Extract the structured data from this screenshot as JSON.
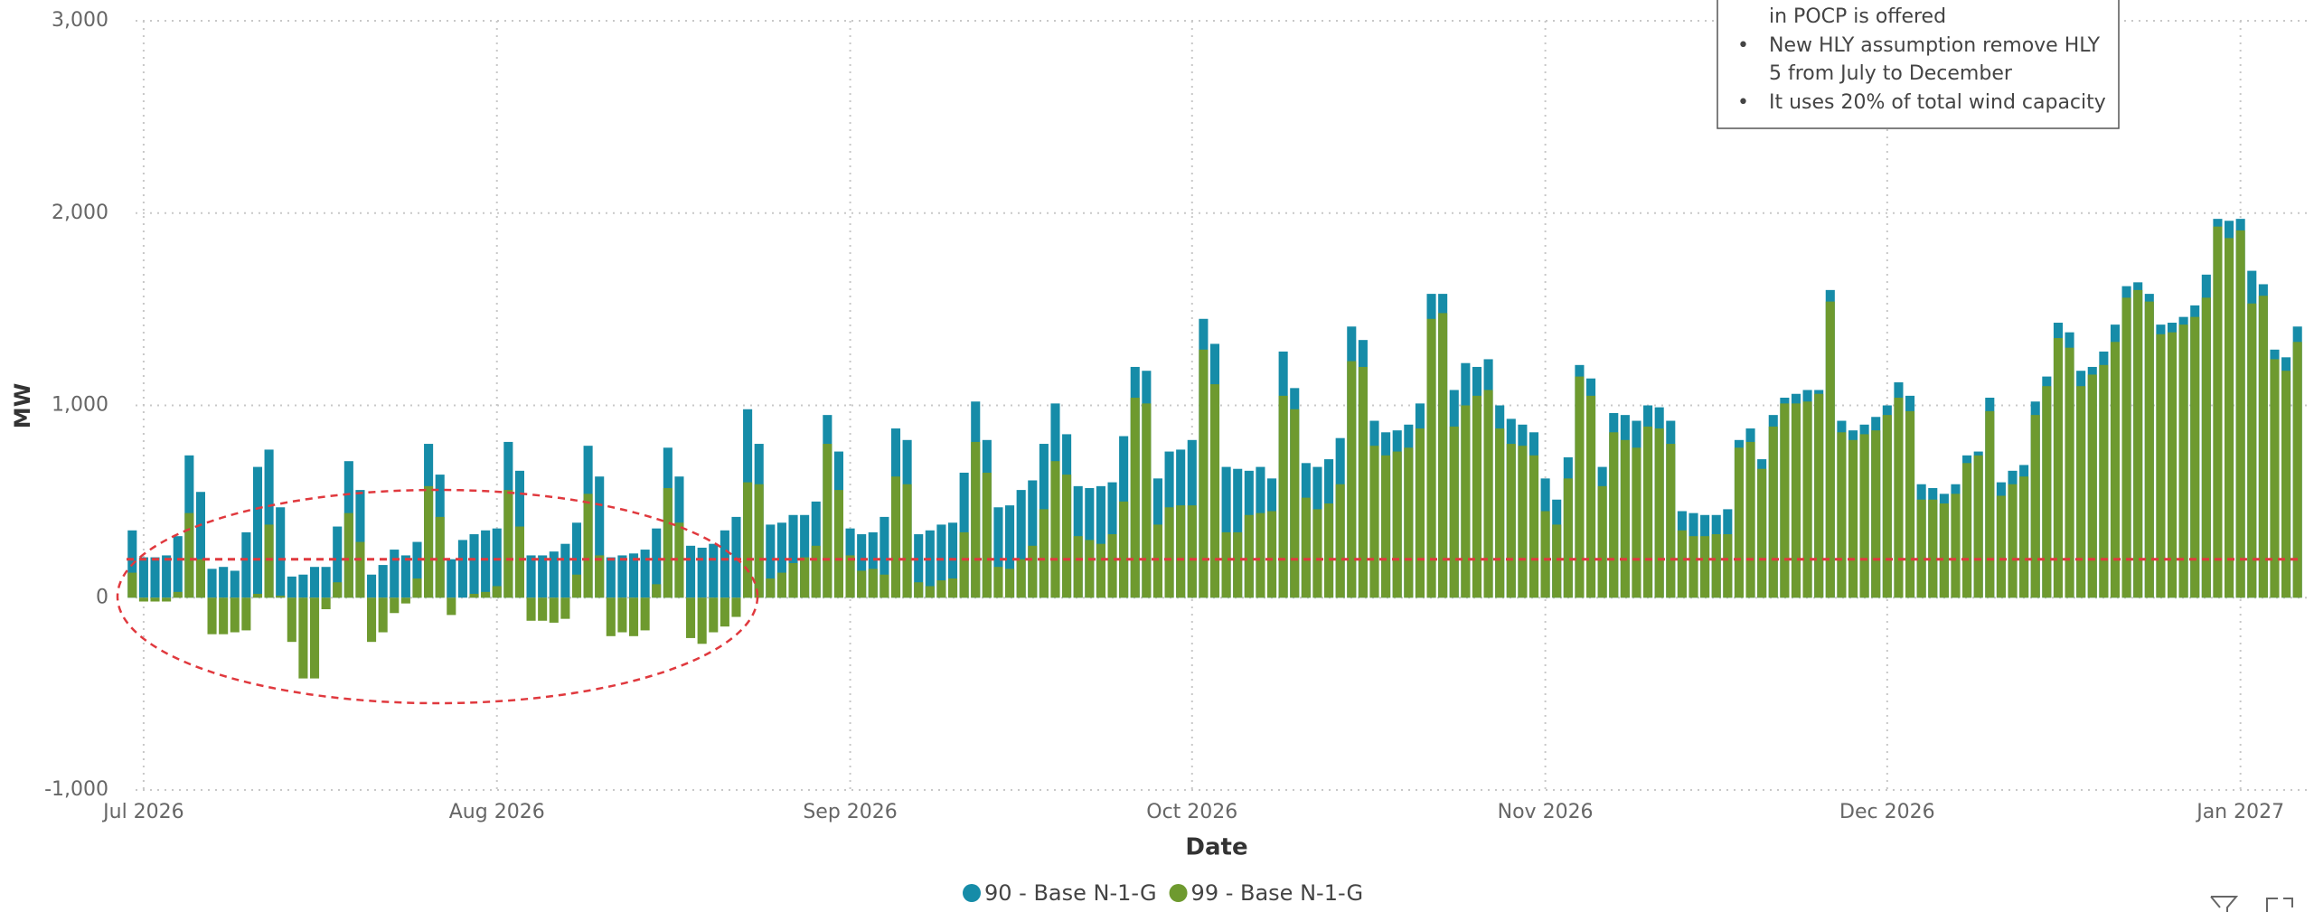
{
  "chart_data": {
    "type": "bar",
    "x_label": "Date",
    "y_label": "MW",
    "xticks": [
      {
        "value": 1,
        "label": "Jul 2026"
      },
      {
        "value": 32,
        "label": "Aug 2026"
      },
      {
        "value": 63,
        "label": "Sep 2026"
      },
      {
        "value": 93,
        "label": "Oct 2026"
      },
      {
        "value": 124,
        "label": "Nov 2026"
      },
      {
        "value": 154,
        "label": "Dec 2026"
      },
      {
        "value": 185,
        "label": "Jan 2027"
      }
    ],
    "xlim": [
      -0.5,
      190.5
    ],
    "ylim": [
      -1000,
      3000
    ],
    "yticks": [
      {
        "value": -1000,
        "label": "-1,000"
      },
      0,
      {
        "value": 1000,
        "label": "1,000"
      },
      {
        "value": 2000,
        "label": "2,000"
      },
      {
        "value": 3000,
        "label": "3,000"
      }
    ],
    "grid": true,
    "reference_line": 200,
    "reference_color": "#e0393e",
    "annotation": [
      "in POCP is offered",
      "New HLY assumption remove HLY",
      "5 from July to December",
      "It uses 20% of total wind capacity"
    ],
    "series": [
      {
        "name": "90 - Base N-1-G",
        "color": "#168ca8",
        "values": [
          350,
          210,
          210,
          220,
          320,
          740,
          550,
          150,
          160,
          140,
          340,
          680,
          770,
          470,
          110,
          120,
          160,
          160,
          370,
          710,
          560,
          120,
          170,
          250,
          220,
          290,
          800,
          640,
          200,
          300,
          330,
          350,
          360,
          810,
          660,
          220,
          220,
          240,
          280,
          390,
          790,
          630,
          210,
          220,
          230,
          250,
          360,
          780,
          630,
          270,
          260,
          280,
          350,
          420,
          980,
          800,
          380,
          390,
          430,
          430,
          500,
          950,
          760,
          360,
          330,
          340,
          420,
          880,
          820,
          330,
          350,
          380,
          390,
          650,
          1020,
          820,
          470,
          480,
          560,
          610,
          800,
          1010,
          850,
          580,
          570,
          580,
          600,
          840,
          1200,
          1180,
          620,
          760,
          770,
          820,
          1450,
          1320,
          680,
          670,
          660,
          680,
          620,
          1280,
          1090,
          700,
          680,
          720,
          830,
          1410,
          1340,
          920,
          860,
          870,
          900,
          1010,
          1580,
          1580,
          1080,
          1220,
          1200,
          1240,
          1000,
          930,
          900,
          860,
          620,
          510,
          730,
          1210,
          1140,
          680,
          960,
          950,
          920,
          1000,
          990,
          920,
          450,
          440,
          430,
          430,
          460,
          820,
          880,
          720,
          950,
          1040,
          1060,
          1080,
          1080,
          1600,
          920,
          870,
          900,
          940,
          1000,
          1120,
          1050,
          590,
          570,
          540,
          590,
          740,
          760,
          1040,
          600,
          660,
          690,
          1020,
          1150,
          1430,
          1380,
          1180,
          1200,
          1280,
          1420,
          1620,
          1640,
          1580,
          1420,
          1430,
          1460,
          1520,
          1680,
          1970,
          1960,
          1970,
          1700,
          1630,
          1290,
          1250,
          1410
        ]
      },
      {
        "name": "99 - Base N-1-G",
        "color": "#6e9a2f",
        "values": [
          130,
          -20,
          -20,
          -20,
          30,
          440,
          200,
          -190,
          -190,
          -180,
          -170,
          20,
          380,
          10,
          -230,
          -420,
          -420,
          -60,
          80,
          440,
          290,
          -230,
          -180,
          -80,
          -30,
          100,
          580,
          420,
          -90,
          0,
          20,
          30,
          60,
          560,
          370,
          -120,
          -120,
          -130,
          -110,
          120,
          540,
          220,
          -200,
          -180,
          -200,
          -170,
          70,
          570,
          390,
          -210,
          -240,
          -180,
          -150,
          -100,
          600,
          590,
          100,
          130,
          180,
          210,
          270,
          800,
          560,
          220,
          140,
          150,
          120,
          630,
          590,
          80,
          60,
          90,
          100,
          340,
          810,
          650,
          160,
          150,
          200,
          270,
          460,
          710,
          640,
          320,
          300,
          280,
          330,
          500,
          1040,
          1010,
          380,
          470,
          480,
          480,
          1290,
          1110,
          340,
          340,
          430,
          440,
          450,
          1050,
          980,
          520,
          460,
          490,
          590,
          1230,
          1200,
          790,
          740,
          760,
          780,
          880,
          1450,
          1480,
          890,
          1000,
          1050,
          1080,
          880,
          800,
          790,
          740,
          450,
          380,
          620,
          1150,
          1050,
          580,
          860,
          820,
          780,
          890,
          880,
          800,
          350,
          320,
          320,
          330,
          330,
          780,
          810,
          670,
          890,
          1010,
          1010,
          1020,
          1060,
          1540,
          860,
          820,
          850,
          870,
          950,
          1040,
          970,
          510,
          510,
          490,
          540,
          700,
          740,
          970,
          530,
          590,
          630,
          950,
          1100,
          1350,
          1300,
          1100,
          1160,
          1210,
          1330,
          1560,
          1600,
          1540,
          1370,
          1380,
          1420,
          1460,
          1560,
          1930,
          1870,
          1910,
          1530,
          1570,
          1240,
          1180,
          1330
        ]
      }
    ]
  }
}
